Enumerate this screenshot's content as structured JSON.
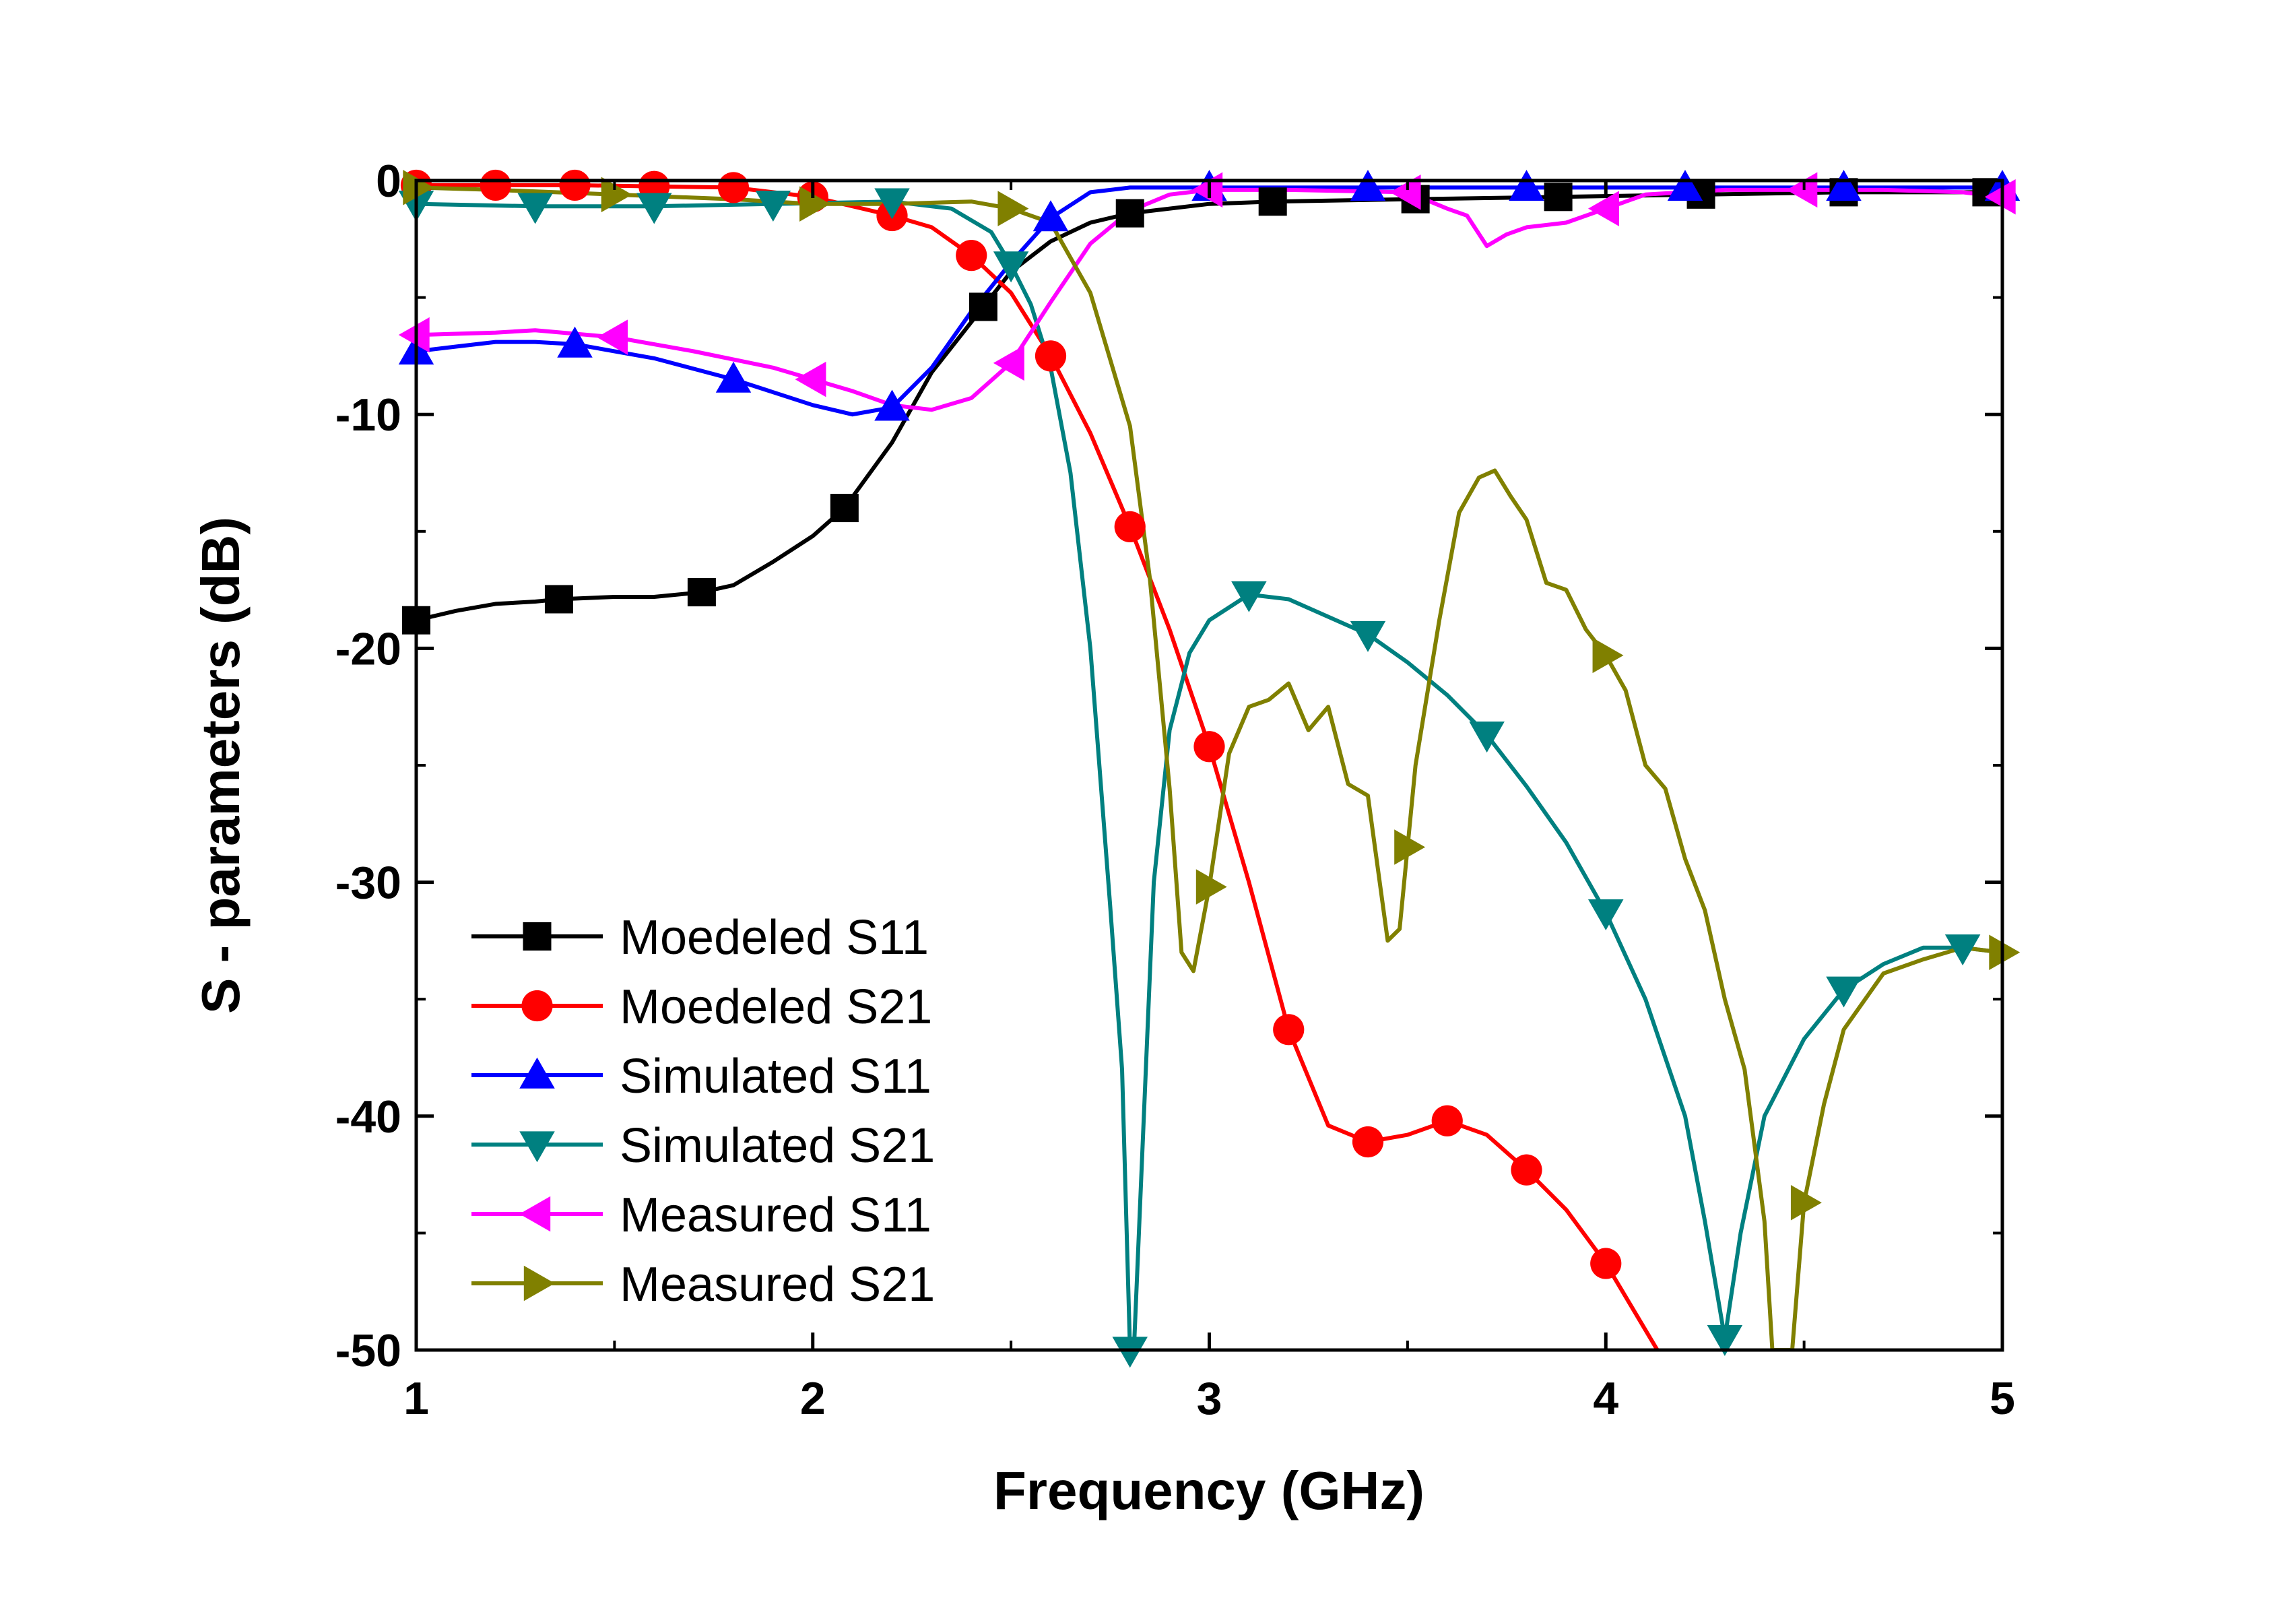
{
  "chart_data": {
    "type": "line",
    "title": "",
    "xlabel": "Frequency  (GHz)",
    "ylabel": "S - parameters  (dB)",
    "xlim": [
      1,
      5
    ],
    "ylim": [
      -50,
      0
    ],
    "xticks": [
      1,
      2,
      3,
      4,
      5
    ],
    "xtick_labels": [
      "1",
      "2",
      "3",
      "4",
      "5"
    ],
    "yticks": [
      0,
      -10,
      -20,
      -30,
      -40,
      -50
    ],
    "ytick_labels": [
      "0",
      "-10",
      "-20",
      "-30",
      "-40",
      "-50"
    ],
    "grid": false,
    "legend_position": "bottom-left",
    "series": [
      {
        "name": "Moedeled S11",
        "color": "#000000",
        "marker": "square",
        "x": [
          1.0,
          1.1,
          1.2,
          1.3,
          1.36,
          1.5,
          1.6,
          1.72,
          1.8,
          1.9,
          2.0,
          2.08,
          2.2,
          2.3,
          2.43,
          2.5,
          2.6,
          2.7,
          2.8,
          3.0,
          3.16,
          3.5,
          3.88,
          4.24,
          4.6,
          5.0
        ],
        "y": [
          -18.8,
          -18.4,
          -18.1,
          -18.0,
          -17.9,
          -17.8,
          -17.8,
          -17.6,
          -17.3,
          -16.3,
          -15.2,
          -14.0,
          -11.2,
          -8.2,
          -5.4,
          -3.9,
          -2.6,
          -1.8,
          -1.4,
          -1.0,
          -0.9,
          -0.8,
          -0.7,
          -0.6,
          -0.5,
          -0.5
        ],
        "marker_x": [
          1.0,
          1.36,
          1.72,
          2.08,
          2.43,
          2.8,
          3.16,
          3.52,
          3.88,
          4.24,
          4.6,
          4.96
        ]
      },
      {
        "name": "Moedeled S21",
        "color": "#ff0000",
        "marker": "circle",
        "x": [
          1.0,
          1.4,
          1.8,
          2.0,
          2.2,
          2.3,
          2.4,
          2.5,
          2.6,
          2.7,
          2.8,
          2.9,
          3.0,
          3.1,
          3.2,
          3.3,
          3.4,
          3.5,
          3.6,
          3.7,
          3.8,
          3.9,
          4.0,
          4.13
        ],
        "y": [
          -0.2,
          -0.2,
          -0.3,
          -0.7,
          -1.5,
          -2.0,
          -3.2,
          -4.8,
          -7.5,
          -10.8,
          -14.8,
          -19.2,
          -24.2,
          -30.0,
          -36.3,
          -40.4,
          -41.1,
          -40.8,
          -40.2,
          -40.8,
          -42.3,
          -44.0,
          -46.3,
          -50.0
        ],
        "marker_x": [
          1.0,
          1.2,
          1.4,
          1.6,
          1.8,
          2.0,
          2.2,
          2.4,
          2.6,
          2.8,
          3.0,
          3.2,
          3.4,
          3.6,
          3.8,
          4.0
        ]
      },
      {
        "name": "Simulated S11",
        "color": "#0000ff",
        "marker": "triangle-up",
        "x": [
          1.0,
          1.1,
          1.2,
          1.3,
          1.4,
          1.6,
          1.8,
          2.0,
          2.1,
          2.2,
          2.3,
          2.4,
          2.5,
          2.6,
          2.7,
          2.8,
          3.0,
          3.5,
          4.0,
          4.5,
          5.0
        ],
        "y": [
          -7.3,
          -7.1,
          -6.9,
          -6.9,
          -7.0,
          -7.6,
          -8.5,
          -9.6,
          -10.0,
          -9.7,
          -8.0,
          -5.6,
          -3.5,
          -1.6,
          -0.5,
          -0.3,
          -0.3,
          -0.3,
          -0.3,
          -0.3,
          -0.3
        ],
        "marker_x": [
          1.0,
          1.4,
          1.8,
          2.2,
          2.6,
          3.0,
          3.4,
          3.8,
          4.2,
          4.6,
          5.0
        ]
      },
      {
        "name": "Simulated S21",
        "color": "#008080",
        "marker": "triangle-down",
        "x": [
          1.0,
          1.3,
          1.6,
          1.9,
          2.2,
          2.35,
          2.45,
          2.5,
          2.55,
          2.6,
          2.65,
          2.7,
          2.75,
          2.78,
          2.8,
          2.81,
          2.83,
          2.86,
          2.9,
          2.95,
          3.0,
          3.1,
          3.2,
          3.4,
          3.5,
          3.6,
          3.7,
          3.8,
          3.9,
          4.0,
          4.1,
          4.2,
          4.25,
          4.3,
          4.34,
          4.4,
          4.5,
          4.6,
          4.7,
          4.8,
          4.9,
          5.0
        ],
        "y": [
          -1.0,
          -1.1,
          -1.1,
          -1.0,
          -0.9,
          -1.2,
          -2.2,
          -3.6,
          -5.3,
          -8.0,
          -12.5,
          -20.0,
          -31.0,
          -38.0,
          -50.0,
          -50.0,
          -42.0,
          -30.0,
          -23.5,
          -20.2,
          -18.8,
          -17.7,
          -17.9,
          -19.4,
          -20.6,
          -22.0,
          -23.7,
          -25.9,
          -28.3,
          -31.3,
          -35.0,
          -40.0,
          -44.5,
          -49.5,
          -45.0,
          -40.0,
          -36.7,
          -34.6,
          -33.5,
          -32.8,
          -32.8,
          -33.0
        ],
        "marker_x": [
          1.0,
          1.3,
          1.6,
          1.9,
          2.2,
          2.5,
          2.8,
          3.1,
          3.4,
          3.7,
          4.0,
          4.3,
          4.6,
          4.9
        ]
      },
      {
        "name": "Measured S11",
        "color": "#ff00ff",
        "marker": "triangle-left",
        "x": [
          1.0,
          1.2,
          1.3,
          1.5,
          1.7,
          1.9,
          2.0,
          2.1,
          2.2,
          2.3,
          2.4,
          2.5,
          2.6,
          2.7,
          2.8,
          2.9,
          3.0,
          3.2,
          3.5,
          3.6,
          3.65,
          3.7,
          3.75,
          3.8,
          3.9,
          4.0,
          4.1,
          4.3,
          4.5,
          4.7,
          4.9,
          5.0
        ],
        "y": [
          -6.6,
          -6.5,
          -6.4,
          -6.7,
          -7.3,
          -8.0,
          -8.5,
          -9.0,
          -9.6,
          -9.8,
          -9.3,
          -7.8,
          -5.2,
          -2.7,
          -1.3,
          -0.6,
          -0.4,
          -0.4,
          -0.5,
          -1.2,
          -1.5,
          -2.8,
          -2.3,
          -2.0,
          -1.8,
          -1.2,
          -0.6,
          -0.4,
          -0.4,
          -0.4,
          -0.5,
          -0.7
        ],
        "marker_x": [
          1.0,
          1.5,
          2.0,
          2.5,
          3.0,
          3.5,
          4.0,
          4.5,
          5.0
        ]
      },
      {
        "name": "Measured S21",
        "color": "#808000",
        "marker": "triangle-right",
        "x": [
          1.0,
          1.2,
          1.5,
          1.8,
          2.0,
          2.2,
          2.4,
          2.5,
          2.6,
          2.7,
          2.8,
          2.85,
          2.9,
          2.93,
          2.96,
          3.0,
          3.05,
          3.1,
          3.15,
          3.2,
          3.25,
          3.3,
          3.35,
          3.4,
          3.45,
          3.48,
          3.52,
          3.58,
          3.63,
          3.68,
          3.72,
          3.76,
          3.8,
          3.85,
          3.9,
          3.95,
          4.0,
          4.05,
          4.1,
          4.15,
          4.2,
          4.25,
          4.3,
          4.35,
          4.4,
          4.42,
          4.45,
          4.47,
          4.5,
          4.55,
          4.6,
          4.7,
          4.8,
          4.9,
          5.0
        ],
        "y": [
          -0.3,
          -0.4,
          -0.6,
          -0.8,
          -1.0,
          -1.0,
          -0.9,
          -1.2,
          -1.8,
          -4.8,
          -10.5,
          -17.0,
          -26.0,
          -33.0,
          -33.8,
          -30.2,
          -24.5,
          -22.5,
          -22.2,
          -21.5,
          -23.5,
          -22.5,
          -25.8,
          -26.3,
          -32.5,
          -32.0,
          -25.0,
          -18.8,
          -14.2,
          -12.7,
          -12.4,
          -13.5,
          -14.5,
          -17.2,
          -17.5,
          -19.2,
          -20.3,
          -21.8,
          -25.0,
          -26.0,
          -29.0,
          -31.2,
          -35.0,
          -38.0,
          -44.5,
          -50.0,
          -50.0,
          -50.0,
          -43.7,
          -39.5,
          -36.3,
          -33.9,
          -33.3,
          -32.8,
          -33.0
        ],
        "marker_x": [
          1.0,
          1.5,
          2.0,
          2.5,
          3.0,
          3.5,
          4.0,
          4.5,
          5.0
        ]
      }
    ]
  }
}
